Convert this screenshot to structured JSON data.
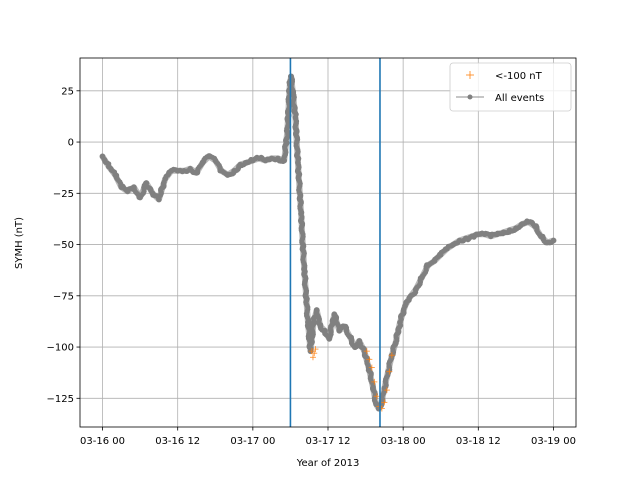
{
  "chart_data": {
    "type": "scatter",
    "title": "",
    "xlabel": "Year of 2013",
    "ylabel": "SYMH (nT)",
    "x_units": "hours since 03-16 00",
    "xlim": [
      -3.6,
      75.6
    ],
    "ylim": [
      -139,
      41
    ],
    "x_ticks": [
      {
        "value": 0,
        "label": "03-16 00"
      },
      {
        "value": 12,
        "label": "03-16 12"
      },
      {
        "value": 24,
        "label": "03-17 00"
      },
      {
        "value": 36,
        "label": "03-17 12"
      },
      {
        "value": 48,
        "label": "03-18 00"
      },
      {
        "value": 60,
        "label": "03-18 12"
      },
      {
        "value": 72,
        "label": "03-19 00"
      }
    ],
    "y_ticks": [
      {
        "value": 25,
        "label": "25"
      },
      {
        "value": 0,
        "label": "0"
      },
      {
        "value": -25,
        "label": "−25"
      },
      {
        "value": -50,
        "label": "−50"
      },
      {
        "value": -75,
        "label": "−75"
      },
      {
        "value": -100,
        "label": "−100"
      },
      {
        "value": -125,
        "label": "−125"
      }
    ],
    "grid": true,
    "legend_position": "top-right",
    "vertical_lines": [
      30.0,
      44.3
    ],
    "vline_color": "#1f77b4",
    "threshold": -100,
    "series": [
      {
        "name": "All events",
        "color": "#808080",
        "style": "line-dot",
        "x": [
          0,
          1,
          2,
          3,
          4,
          5,
          6,
          7,
          8,
          9,
          10,
          11,
          12,
          13,
          14,
          15,
          16,
          17,
          18,
          19,
          20,
          21,
          22,
          23,
          24,
          25,
          26,
          27,
          28,
          29,
          29.5,
          29.9,
          30.1,
          30.4,
          30.8,
          31.2,
          31.7,
          32.2,
          32.8,
          33.2,
          33.7,
          34.2,
          34.8,
          35.5,
          36.2,
          37,
          37.8,
          38.6,
          39.5,
          40.3,
          41,
          41.8,
          42.5,
          43.2,
          43.7,
          44.1,
          44.5,
          45,
          45.6,
          46.2,
          46.8,
          47.5,
          48.3,
          49,
          50,
          51,
          52,
          53,
          54,
          55,
          56,
          57,
          58,
          59,
          60,
          61,
          62,
          63,
          64,
          65,
          66,
          67,
          68,
          69,
          70,
          71,
          72
        ],
        "y": [
          -7,
          -12,
          -16,
          -22,
          -24,
          -22,
          -27,
          -20,
          -25,
          -28,
          -18,
          -14,
          -14,
          -14,
          -13,
          -15,
          -10,
          -7,
          -9,
          -14,
          -16,
          -14,
          -11,
          -10,
          -9,
          -8,
          -9,
          -8,
          -8,
          -9,
          5,
          28,
          32,
          24,
          12,
          -10,
          -35,
          -62,
          -88,
          -102,
          -88,
          -82,
          -90,
          -92,
          -96,
          -84,
          -92,
          -90,
          -95,
          -100,
          -97,
          -102,
          -110,
          -120,
          -128,
          -130,
          -128,
          -120,
          -112,
          -104,
          -98,
          -88,
          -80,
          -76,
          -72,
          -66,
          -60,
          -58,
          -55,
          -52,
          -50,
          -48,
          -47,
          -46,
          -45,
          -45,
          -46,
          -45,
          -44,
          -43,
          -42,
          -40,
          -39,
          -41,
          -46,
          -49,
          -48
        ]
      },
      {
        "name": "<-100 nT",
        "color": "#ff7f0e",
        "style": "plus",
        "x": [
          33.4,
          33.6,
          33.8,
          34.0,
          42.2,
          42.6,
          43.0,
          43.4,
          43.8,
          44.2,
          44.6,
          45.0,
          45.4,
          45.8,
          46.2
        ],
        "y": [
          -102,
          -105,
          -103,
          -101,
          -102,
          -106,
          -110,
          -117,
          -124,
          -129,
          -130,
          -127,
          -121,
          -112,
          -104
        ]
      }
    ]
  }
}
